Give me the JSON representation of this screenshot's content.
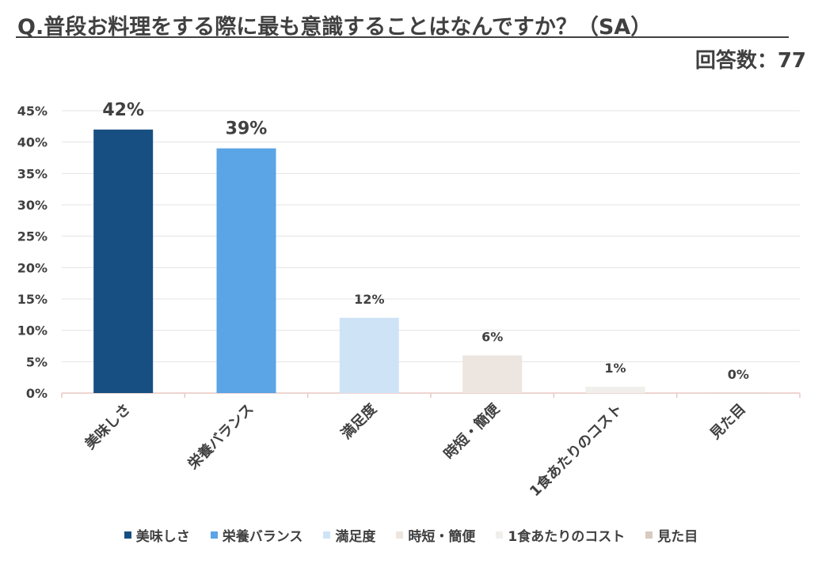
{
  "title": "Q.普段お料理をする際に最も意識することはなんですか？（SA）",
  "responses_label": "回答数：77",
  "chart_data": {
    "type": "bar",
    "categories": [
      "美味しさ",
      "栄養バランス",
      "満足度",
      "時短・簡便",
      "1食あたりのコスト",
      "見た目"
    ],
    "values": [
      42,
      39,
      12,
      6,
      1,
      0
    ],
    "value_labels": [
      "42%",
      "39%",
      "12%",
      "6%",
      "1%",
      "0%"
    ],
    "colors": [
      "#174f82",
      "#5ba4e5",
      "#cfe3f7",
      "#ede5df",
      "#f1efec",
      "#d7cbbf"
    ],
    "ylim": [
      0,
      45
    ],
    "yticks": [
      "0%",
      "5%",
      "10%",
      "15%",
      "20%",
      "25%",
      "30%",
      "35%",
      "40%",
      "45%"
    ],
    "xlabel": "",
    "ylabel": "",
    "grid": true,
    "legend_position": "bottom"
  }
}
